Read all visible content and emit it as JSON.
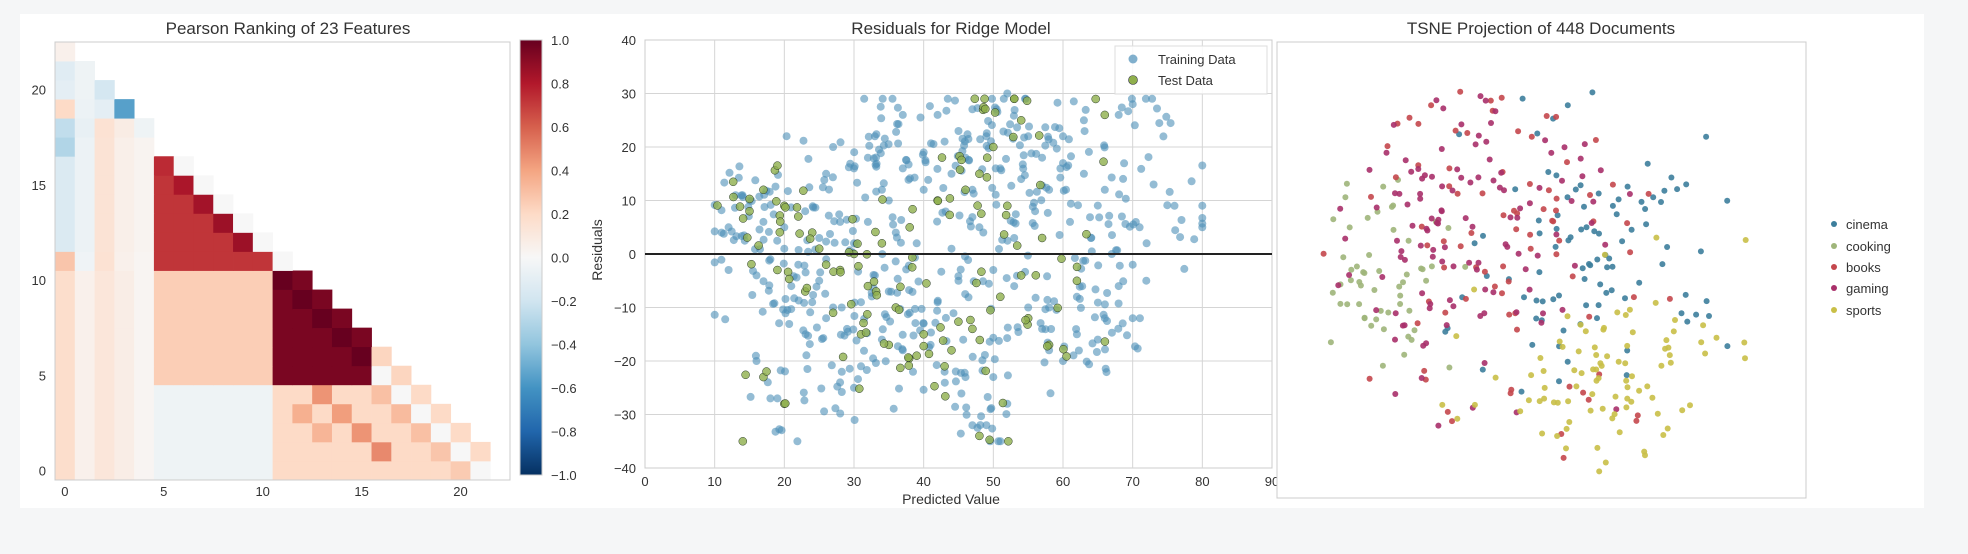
{
  "chart_data": [
    {
      "type": "heatmap",
      "title": "Pearson Ranking of 23 Features",
      "n_features": 23,
      "xticks": [
        "0",
        "5",
        "10",
        "15",
        "20"
      ],
      "yticks": [
        "0",
        "5",
        "10",
        "15",
        "20"
      ],
      "colorbar": {
        "range": [
          -1.0,
          1.0
        ],
        "ticks": [
          "1.0",
          "0.8",
          "0.6",
          "0.4",
          "0.2",
          "0.0",
          "−0.2",
          "−0.4",
          "−0.6",
          "−0.8",
          "−1.0"
        ],
        "colormap": "RdBu_r"
      },
      "blocks": [
        {
          "rows": [
            0,
            11
          ],
          "cols": [
            0,
            1
          ],
          "value": 0.18
        },
        {
          "rows": [
            0,
            11
          ],
          "cols": [
            1,
            2
          ],
          "value": 0.05
        },
        {
          "rows": [
            0,
            11
          ],
          "cols": [
            2,
            3
          ],
          "value": 0.12
        },
        {
          "rows": [
            0,
            11
          ],
          "cols": [
            3,
            4
          ],
          "value": 0.07
        },
        {
          "rows": [
            0,
            11
          ],
          "cols": [
            4,
            5
          ],
          "value": 0.02
        },
        {
          "rows": [
            0,
            5
          ],
          "cols": [
            5,
            11
          ],
          "value": -0.05
        },
        {
          "rows": [
            5,
            11
          ],
          "cols": [
            5,
            11
          ],
          "value": 0.25
        },
        {
          "rows": [
            12,
            17
          ],
          "cols": [
            0,
            1
          ],
          "value": -0.15
        },
        {
          "rows": [
            12,
            18
          ],
          "cols": [
            1,
            2
          ],
          "value": -0.06
        },
        {
          "rows": [
            12,
            19
          ],
          "cols": [
            2,
            3
          ],
          "value": 0.14
        },
        {
          "rows": [
            12,
            20
          ],
          "cols": [
            3,
            4
          ],
          "value": 0.06
        },
        {
          "rows": [
            12,
            21
          ],
          "cols": [
            4,
            5
          ],
          "value": 0.03
        },
        {
          "rows": [
            11,
            16
          ],
          "cols": [
            5,
            11
          ],
          "value": 0.72
        },
        {
          "rows": [
            0,
            11
          ],
          "cols": [
            11,
            22
          ],
          "value": 0.22
        },
        {
          "rows": [
            0,
            5
          ],
          "cols": [
            11,
            22
          ],
          "value": 0.2
        },
        {
          "rows": [
            5,
            11
          ],
          "cols": [
            11,
            16
          ],
          "value": 0.95
        }
      ],
      "cells": [
        {
          "r": 22,
          "c": 0,
          "v": 0.05
        },
        {
          "r": 21,
          "c": 0,
          "v": -0.12
        },
        {
          "r": 21,
          "c": 1,
          "v": -0.05
        },
        {
          "r": 20,
          "c": 0,
          "v": -0.1
        },
        {
          "r": 20,
          "c": 1,
          "v": -0.05
        },
        {
          "r": 20,
          "c": 2,
          "v": -0.18
        },
        {
          "r": 19,
          "c": 0,
          "v": 0.2
        },
        {
          "r": 19,
          "c": 1,
          "v": -0.06
        },
        {
          "r": 19,
          "c": 2,
          "v": -0.1
        },
        {
          "r": 19,
          "c": 3,
          "v": -0.55
        },
        {
          "r": 18,
          "c": 0,
          "v": -0.25
        },
        {
          "r": 18,
          "c": 1,
          "v": -0.08
        },
        {
          "r": 18,
          "c": 2,
          "v": 0.15
        },
        {
          "r": 18,
          "c": 3,
          "v": 0.08
        },
        {
          "r": 18,
          "c": 4,
          "v": -0.05
        },
        {
          "r": 17,
          "c": 0,
          "v": -0.3
        },
        {
          "r": 11,
          "c": 0,
          "v": 0.28
        },
        {
          "r": 11,
          "c": 1,
          "v": -0.04
        },
        {
          "r": 11,
          "c": 2,
          "v": 0.15
        },
        {
          "r": 11,
          "c": 3,
          "v": 0.05
        },
        {
          "r": 11,
          "c": 4,
          "v": 0.02
        },
        {
          "r": 16,
          "c": 5,
          "v": 0.75
        },
        {
          "r": 15,
          "c": 6,
          "v": 0.82
        },
        {
          "r": 14,
          "c": 7,
          "v": 0.84
        },
        {
          "r": 13,
          "c": 8,
          "v": 0.86
        },
        {
          "r": 12,
          "c": 9,
          "v": 0.86
        },
        {
          "r": 16,
          "c": 6,
          "v": 0.0
        },
        {
          "r": 15,
          "c": 7,
          "v": 0.0
        },
        {
          "r": 14,
          "c": 8,
          "v": 0.0
        },
        {
          "r": 13,
          "c": 9,
          "v": 0.0
        },
        {
          "r": 12,
          "c": 10,
          "v": 0.0
        },
        {
          "r": 11,
          "c": 11,
          "v": 0.0
        },
        {
          "r": 10,
          "c": 11,
          "v": 1.0
        },
        {
          "r": 9,
          "c": 12,
          "v": 1.0
        },
        {
          "r": 8,
          "c": 13,
          "v": 1.0
        },
        {
          "r": 7,
          "c": 14,
          "v": 1.0
        },
        {
          "r": 6,
          "c": 15,
          "v": 1.0
        },
        {
          "r": 4,
          "c": 16,
          "v": 0.3
        },
        {
          "r": 3,
          "c": 17,
          "v": 0.32
        },
        {
          "r": 2,
          "c": 18,
          "v": 0.3
        },
        {
          "r": 1,
          "c": 19,
          "v": 0.28
        },
        {
          "r": 0,
          "c": 20,
          "v": 0.26
        },
        {
          "r": 5,
          "c": 16,
          "v": 0.0
        },
        {
          "r": 4,
          "c": 17,
          "v": 0.0
        },
        {
          "r": 3,
          "c": 18,
          "v": 0.0
        },
        {
          "r": 2,
          "c": 19,
          "v": 0.0
        },
        {
          "r": 1,
          "c": 20,
          "v": 0.0
        },
        {
          "r": 0,
          "c": 21,
          "v": 0.0
        },
        {
          "r": 4,
          "c": 13,
          "v": 0.45
        },
        {
          "r": 3,
          "c": 14,
          "v": 0.42
        },
        {
          "r": 2,
          "c": 15,
          "v": 0.45
        },
        {
          "r": 1,
          "c": 16,
          "v": 0.48
        },
        {
          "r": 3,
          "c": 12,
          "v": 0.36
        },
        {
          "r": 2,
          "c": 13,
          "v": 0.34
        }
      ]
    },
    {
      "type": "scatter",
      "title": "Residuals for Ridge Model",
      "xlabel": "Predicted Value",
      "ylabel": "Residuals",
      "xlim": [
        0,
        90
      ],
      "ylim": [
        -40,
        40
      ],
      "xticks": [
        "0",
        "10",
        "20",
        "30",
        "40",
        "50",
        "60",
        "70",
        "80",
        "90"
      ],
      "yticks": [
        "40",
        "30",
        "20",
        "10",
        "0",
        "−10",
        "−20",
        "−30",
        "−40"
      ],
      "hline": 0,
      "legend_position": "top-right",
      "series": [
        {
          "name": "Training Data",
          "color": "#4c8fb8",
          "count": 600,
          "points": [
            [
              13,
              11
            ],
            [
              14,
              11
            ],
            [
              15,
              10
            ],
            [
              12,
              5
            ],
            [
              11,
              4
            ],
            [
              17,
              6
            ],
            [
              20,
              5
            ],
            [
              23,
              8
            ],
            [
              28,
              6
            ],
            [
              30,
              16
            ],
            [
              33,
              22
            ],
            [
              32,
              18
            ],
            [
              27,
              20
            ],
            [
              26,
              15
            ],
            [
              37,
              26
            ],
            [
              42,
              26
            ],
            [
              45,
              23
            ],
            [
              49,
              22
            ],
            [
              52,
              30
            ],
            [
              55,
              22
            ],
            [
              60,
              22
            ],
            [
              63,
              25
            ],
            [
              68,
              26
            ],
            [
              70,
              28
            ],
            [
              63,
              15
            ],
            [
              66,
              12
            ],
            [
              73,
              13
            ],
            [
              71,
              5
            ],
            [
              76,
              9
            ],
            [
              80,
              5
            ],
            [
              72,
              2
            ],
            [
              70,
              -2
            ],
            [
              68,
              -6
            ],
            [
              66,
              -12
            ],
            [
              70,
              -12
            ],
            [
              65,
              -16
            ],
            [
              62,
              -15
            ],
            [
              58,
              -18
            ],
            [
              50,
              -23
            ],
            [
              46,
              -23
            ],
            [
              43,
              -22
            ],
            [
              41,
              -17
            ],
            [
              37,
              -18
            ],
            [
              34,
              -16
            ],
            [
              31,
              -21
            ],
            [
              30,
              -25
            ],
            [
              28,
              -24
            ],
            [
              19,
              -27
            ],
            [
              18,
              -27
            ],
            [
              16,
              -20
            ],
            [
              16,
              -4
            ],
            [
              12,
              -3
            ],
            [
              47,
              -32
            ],
            [
              49,
              -32
            ],
            [
              52,
              -28
            ],
            [
              58,
              -10
            ],
            [
              60,
              -20
            ],
            [
              62,
              -8
            ],
            [
              48,
              5
            ],
            [
              47,
              12
            ],
            [
              44,
              15
            ],
            [
              40,
              12
            ],
            [
              35,
              10
            ],
            [
              25,
              -5
            ],
            [
              22,
              -2
            ],
            [
              27,
              -10
            ],
            [
              29,
              -14
            ],
            [
              31,
              -9
            ],
            [
              33,
              -4
            ],
            [
              35,
              -7
            ],
            [
              38,
              -11
            ],
            [
              40,
              -13
            ],
            [
              42,
              -9
            ],
            [
              45,
              -5
            ],
            [
              50,
              -3
            ],
            [
              53,
              -6
            ],
            [
              55,
              -10
            ],
            [
              57,
              -14
            ],
            [
              53,
              3
            ],
            [
              56,
              8
            ],
            [
              58,
              12
            ],
            [
              61,
              6
            ],
            [
              64,
              3
            ],
            [
              67,
              0
            ],
            [
              44,
              1
            ],
            [
              39,
              2
            ],
            [
              36,
              4
            ],
            [
              30,
              2
            ],
            [
              25,
              3
            ],
            [
              20,
              1
            ],
            [
              18,
              -1
            ],
            [
              21,
              -6
            ],
            [
              24,
              -9
            ],
            [
              26,
              -12
            ],
            [
              32,
              6
            ],
            [
              34,
              12
            ],
            [
              37,
              16
            ],
            [
              40,
              19
            ],
            [
              43,
              21
            ],
            [
              46,
              18
            ],
            [
              51,
              16
            ],
            [
              54,
              14
            ],
            [
              57,
              18
            ],
            [
              60,
              17
            ]
          ]
        },
        {
          "name": "Test Data",
          "color": "#8faf4c",
          "count": 150,
          "points": [
            [
              17,
              -23
            ],
            [
              20,
              -28
            ],
            [
              48,
              -34
            ],
            [
              53,
              29
            ],
            [
              54,
              25
            ],
            [
              66,
              26
            ],
            [
              50,
              20
            ],
            [
              46,
              12
            ],
            [
              22,
              7
            ],
            [
              25,
              1
            ],
            [
              28,
              -3
            ],
            [
              32,
              -6
            ],
            [
              36,
              -10
            ],
            [
              40,
              -15
            ],
            [
              44,
              -18
            ],
            [
              55,
              -12
            ],
            [
              58,
              -17
            ],
            [
              62,
              -5
            ],
            [
              57,
              3
            ],
            [
              52,
              9
            ],
            [
              48,
              15
            ],
            [
              42,
              10
            ],
            [
              38,
              5
            ],
            [
              34,
              2
            ],
            [
              30,
              0
            ],
            [
              26,
              -2
            ],
            [
              24,
              4
            ],
            [
              20,
              9
            ],
            [
              17,
              12
            ],
            [
              15,
              8
            ],
            [
              19,
              -3
            ],
            [
              23,
              -7
            ],
            [
              27,
              -11
            ],
            [
              31,
              -15
            ],
            [
              35,
              -17
            ],
            [
              39,
              -19
            ],
            [
              43,
              -21
            ],
            [
              47,
              -14
            ],
            [
              51,
              -8
            ],
            [
              54,
              -4
            ]
          ]
        }
      ]
    },
    {
      "type": "scatter",
      "title": "TSNE Projection of 448 Documents",
      "legend_position": "right",
      "series": [
        {
          "name": "cinema",
          "color": "#3d7e9c"
        },
        {
          "name": "cooking",
          "color": "#9fb57a"
        },
        {
          "name": "books",
          "color": "#c4474d"
        },
        {
          "name": "gaming",
          "color": "#a9306a"
        },
        {
          "name": "sports",
          "color": "#c9bf47"
        }
      ]
    }
  ]
}
